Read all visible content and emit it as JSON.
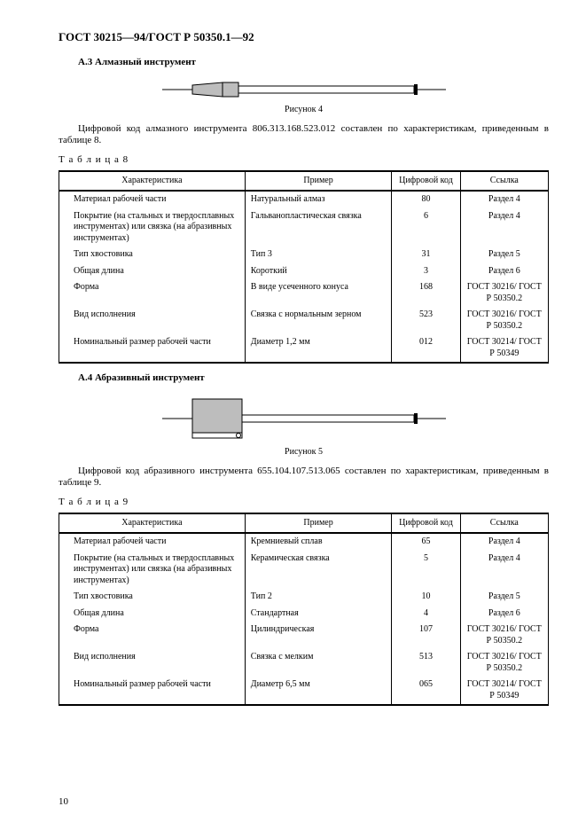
{
  "doc_title": "ГОСТ 30215—94/ГОСТ Р 50350.1—92",
  "page_number": "10",
  "section_a3": {
    "heading": "А.3 Алмазный инструмент",
    "fig_caption": "Рисунок 4",
    "para": "Цифровой код алмазного инструмента 806.313.168.523.012 составлен по характеристикам, приведенным в таблице 8.",
    "table_label": "Т а б л и ц а  8",
    "columns": [
      "Характеристика",
      "Пример",
      "Цифровой код",
      "Ссылка"
    ],
    "rows": [
      {
        "char": "Материал рабочей части",
        "ex": "Натуральный алмаз",
        "code": "80",
        "ref": "Раздел 4"
      },
      {
        "char": "Покрытие (на стальных и твердосплавных инструментах) или связка (на абразивных инструментах)",
        "ex": "Гальванопластическая связка",
        "code": "6",
        "ref": "Раздел 4"
      },
      {
        "char": "Тип хвостовика",
        "ex": "Тип 3",
        "code": "31",
        "ref": "Раздел 5"
      },
      {
        "char": "Общая длина",
        "ex": "Короткий",
        "code": "3",
        "ref": "Раздел 6"
      },
      {
        "char": "Форма",
        "ex": "В виде усеченного конуса",
        "code": "168",
        "ref": "ГОСТ 30216/ ГОСТ Р 50350.2"
      },
      {
        "char": "Вид исполнения",
        "ex": "Связка с нормальным зерном",
        "code": "523",
        "ref": "ГОСТ 30216/ ГОСТ Р 50350.2"
      },
      {
        "char": "Номинальный размер рабочей части",
        "ex": "Диаметр 1,2 мм",
        "code": "012",
        "ref": "ГОСТ 30214/ ГОСТ Р 50349"
      }
    ]
  },
  "section_a4": {
    "heading": "А.4 Абразивный инструмент",
    "fig_caption": "Рисунок 5",
    "para": "Цифровой код абразивного инструмента 655.104.107.513.065 составлен по характеристикам, приведенным в таблице 9.",
    "table_label": "Т а б л и ц а  9",
    "columns": [
      "Характеристика",
      "Пример",
      "Цифровой код",
      "Ссылка"
    ],
    "rows": [
      {
        "char": "Материал рабочей части",
        "ex": "Кремниевый сплав",
        "code": "65",
        "ref": "Раздел 4"
      },
      {
        "char": "Покрытие (на стальных и твердосплавных инструментах) или связка (на абразивных инструментах)",
        "ex": "Керамическая связка",
        "code": "5",
        "ref": "Раздел 4"
      },
      {
        "char": "Тип хвостовика",
        "ex": "Тип 2",
        "code": "10",
        "ref": "Раздел 5"
      },
      {
        "char": "Общая длина",
        "ex": "Стандартная",
        "code": "4",
        "ref": "Раздел 6"
      },
      {
        "char": "Форма",
        "ex": "Цилиндрическая",
        "code": "107",
        "ref": "ГОСТ 30216/ ГОСТ Р 50350.2"
      },
      {
        "char": "Вид исполнения",
        "ex": "Связка с мелким",
        "code": "513",
        "ref": "ГОСТ 30216/ ГОСТ Р 50350.2"
      },
      {
        "char": "Номинальный размер рабочей части",
        "ex": "Диаметр 6,5 мм",
        "code": "065",
        "ref": "ГОСТ 30214/ ГОСТ Р 50349"
      }
    ]
  },
  "figures": {
    "tool1": {
      "shaft_fill": "#ffffff",
      "tip_fill": "#bdbdbd",
      "stroke": "#000000"
    },
    "tool2": {
      "shaft_fill": "#ffffff",
      "head_fill": "#bdbdbd",
      "stroke": "#000000"
    }
  }
}
